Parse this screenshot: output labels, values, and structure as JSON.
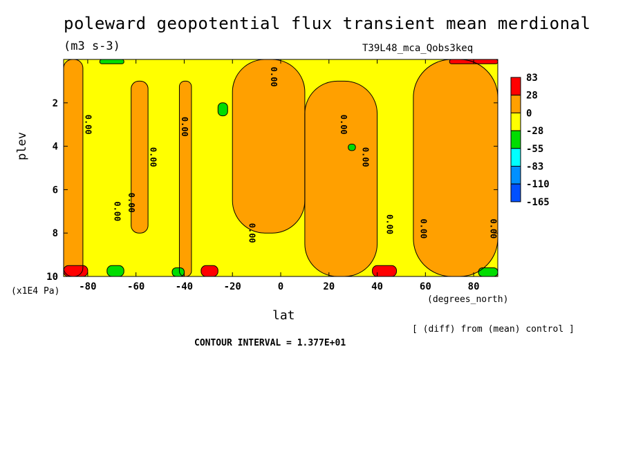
{
  "chart_data": {
    "type": "heatmap",
    "title": "poleward geopotential flux transient mean merdional",
    "subtitle": "(m3 s-3)",
    "run_label": "T39L48_mca_Qobs3keq",
    "xlabel": "lat",
    "xunits": "(degrees_north)",
    "ylabel": "plev",
    "yunits": "(x1E4 Pa)",
    "xlim": [
      -90,
      90
    ],
    "ylim": [
      10,
      0
    ],
    "xticks": [
      -80,
      -60,
      -40,
      -20,
      0,
      20,
      40,
      60,
      80
    ],
    "xtick_labels": [
      "-80",
      "-60",
      "-40",
      "-20",
      "0",
      "20",
      "40",
      "60",
      "80"
    ],
    "yticks": [
      2,
      4,
      6,
      8,
      10
    ],
    "ytick_labels": [
      "2",
      "4",
      "6",
      "8",
      "10"
    ],
    "contour_labels": [
      "0.00",
      "0.00",
      "0.00",
      "0.00",
      "0.00",
      "0.00",
      "0.00",
      "0.00",
      "0.00",
      "0.00",
      "0.00",
      "0.00"
    ],
    "legend": {
      "placement": "right",
      "labels": [
        "83",
        "28",
        "0",
        "-28",
        "-55",
        "-83",
        "-110",
        "-165"
      ],
      "colors": [
        "#ff0000",
        "#ffa000",
        "#ffff00",
        "#00dd00",
        "#00ffff",
        "#0090ff",
        "#0050ff"
      ]
    },
    "footnote": "[ (diff) from (mean) control ]",
    "contour_interval": "CONTOUR INTERVAL = 1.377E+01",
    "regions": [
      {
        "level": "positive",
        "color": "#ffa000",
        "lat_range": [
          -90,
          -82
        ],
        "plev_range": [
          0,
          10
        ]
      },
      {
        "level": "positive",
        "color": "#ffa000",
        "lat_range": [
          -62,
          -55
        ],
        "plev_range": [
          1,
          8
        ]
      },
      {
        "level": "positive",
        "color": "#ffa000",
        "lat_range": [
          -42,
          -37
        ],
        "plev_range": [
          1,
          10
        ]
      },
      {
        "level": "positive",
        "color": "#ffa000",
        "lat_range": [
          -20,
          10
        ],
        "plev_range": [
          0,
          8
        ]
      },
      {
        "level": "positive",
        "color": "#ffa000",
        "lat_range": [
          10,
          40
        ],
        "plev_range": [
          1,
          10
        ]
      },
      {
        "level": "positive",
        "color": "#ffa000",
        "lat_range": [
          55,
          90
        ],
        "plev_range": [
          0,
          10
        ]
      },
      {
        "level": "high",
        "color": "#ff0000",
        "lat_range": [
          -90,
          -80
        ],
        "plev_range": [
          9.5,
          10
        ]
      },
      {
        "level": "high",
        "color": "#ff0000",
        "lat_range": [
          -33,
          -26
        ],
        "plev_range": [
          9.5,
          10
        ]
      },
      {
        "level": "high",
        "color": "#ff0000",
        "lat_range": [
          38,
          48
        ],
        "plev_range": [
          9.5,
          10
        ]
      },
      {
        "level": "high",
        "color": "#ff0000",
        "lat_range": [
          70,
          90
        ],
        "plev_range": [
          0,
          0.2
        ]
      },
      {
        "level": "negative",
        "color": "#00dd00",
        "lat_range": [
          -26,
          -22
        ],
        "plev_range": [
          2.0,
          2.6
        ]
      },
      {
        "level": "negative",
        "color": "#00dd00",
        "lat_range": [
          -75,
          -65
        ],
        "plev_range": [
          0,
          0.2
        ]
      },
      {
        "level": "negative",
        "color": "#00dd00",
        "lat_range": [
          -72,
          -65
        ],
        "plev_range": [
          9.5,
          10
        ]
      },
      {
        "level": "negative",
        "color": "#00dd00",
        "lat_range": [
          -45,
          -40
        ],
        "plev_range": [
          9.6,
          10
        ]
      },
      {
        "level": "negative",
        "color": "#00dd00",
        "lat_range": [
          28,
          31
        ],
        "plev_range": [
          3.9,
          4.2
        ]
      },
      {
        "level": "negative",
        "color": "#00dd00",
        "lat_range": [
          82,
          90
        ],
        "plev_range": [
          9.6,
          10
        ]
      }
    ]
  }
}
